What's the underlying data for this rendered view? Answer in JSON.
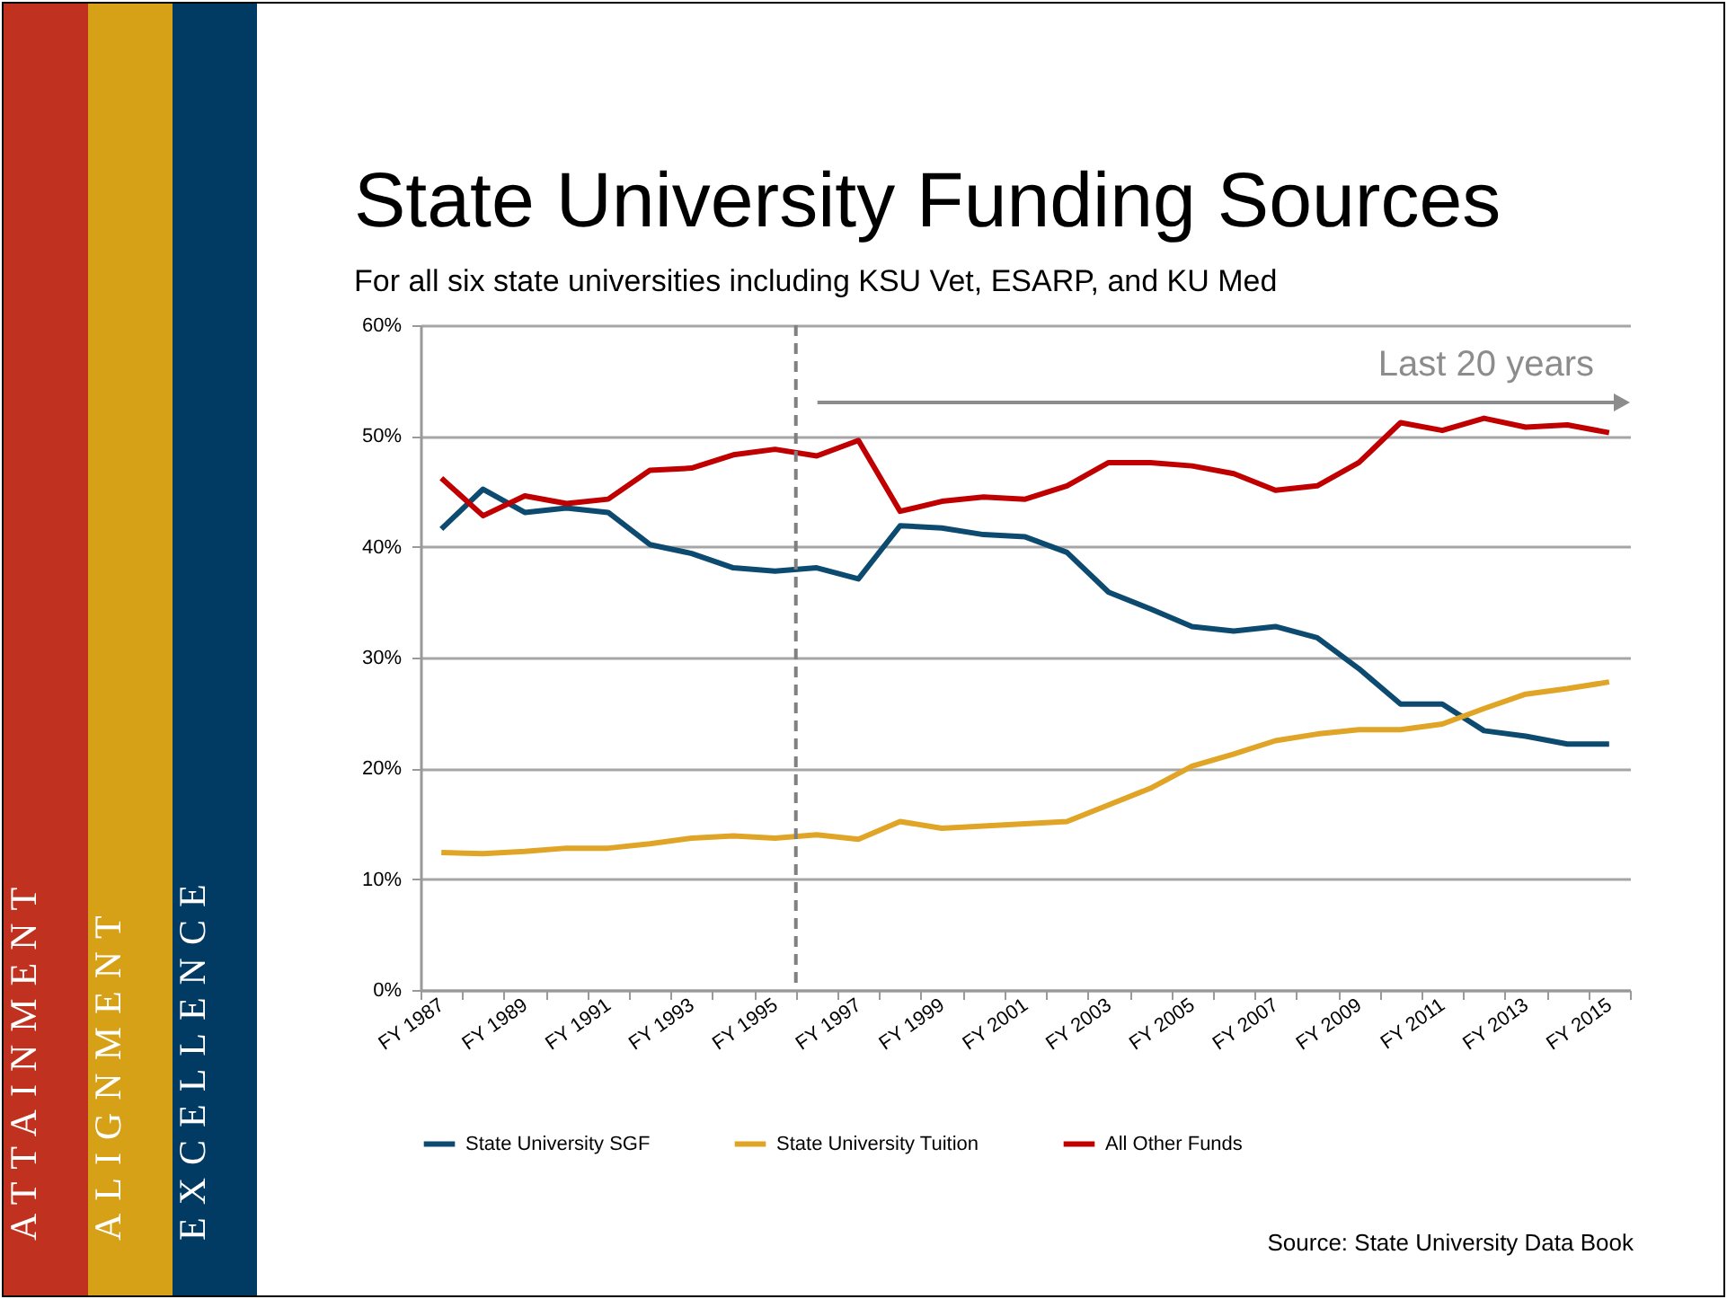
{
  "chart_data": {
    "type": "line",
    "title": "State University Funding Sources",
    "subtitle": "For all six state universities including KSU Vet, ESARP, and KU Med",
    "categories": [
      "FY 1987",
      null,
      "FY 1989",
      null,
      "FY 1991",
      null,
      "FY 1993",
      null,
      "FY 1995",
      null,
      "FY 1997",
      null,
      "FY 1999",
      null,
      "FY 2001",
      null,
      "FY 2003",
      null,
      "FY 2005",
      null,
      "FY 2007",
      null,
      "FY 2009",
      null,
      "FY 2011",
      null,
      "FY 2013",
      null,
      "FY 2015"
    ],
    "ylim": [
      0,
      60
    ],
    "yticks": [
      {
        "value": 0,
        "label": "0%"
      },
      {
        "value": 10,
        "label": "10%"
      },
      {
        "value": 20,
        "label": "20%"
      },
      {
        "value": 30,
        "label": "30%"
      },
      {
        "value": 40,
        "label": "40%"
      },
      {
        "value": 50,
        "label": "50%"
      },
      {
        "value": 60,
        "label": "60%"
      }
    ],
    "series": [
      {
        "name": "State University SGF",
        "color": "#0d4a70",
        "values": [
          41.6,
          45.2,
          43.1,
          43.5,
          43.1,
          40.2,
          39.4,
          38.1,
          37.8,
          38.1,
          37.1,
          41.9,
          41.7,
          41.1,
          40.9,
          39.5,
          35.9,
          34.4,
          32.8,
          32.4,
          32.8,
          31.8,
          29.0,
          25.8,
          25.8,
          23.4,
          22.9,
          22.2,
          22.2
        ]
      },
      {
        "name": "State University Tuition",
        "color": "#e0a526",
        "values": [
          12.4,
          12.3,
          12.5,
          12.8,
          12.8,
          13.2,
          13.7,
          13.9,
          13.7,
          14.0,
          13.6,
          15.2,
          14.6,
          14.8,
          15.0,
          15.2,
          16.7,
          18.2,
          20.2,
          21.3,
          22.5,
          23.1,
          23.5,
          23.5,
          24.0,
          25.4,
          26.7,
          27.2,
          27.8
        ]
      },
      {
        "name": "All Other Funds",
        "color": "#c00000",
        "values": [
          46.2,
          42.8,
          44.6,
          43.9,
          44.3,
          46.9,
          47.1,
          48.3,
          48.8,
          48.2,
          49.6,
          43.2,
          44.1,
          44.5,
          44.3,
          45.5,
          47.6,
          47.6,
          47.3,
          46.6,
          45.1,
          45.5,
          47.6,
          51.2,
          50.5,
          51.6,
          50.8,
          51.0,
          50.3
        ]
      }
    ],
    "ref_lines": [
      {
        "axis": "x",
        "value": "FY 1995",
        "color": "#808080",
        "line_style": "dashed"
      }
    ],
    "annotations": [
      "Last 20 years",
      "Source: State University Data Book",
      "ATTAINMENT",
      "ALIGNMENT",
      "EXCELLENCE"
    ],
    "grid": "y",
    "legend": "bottom",
    "marker": "none",
    "line_style": "solid"
  }
}
